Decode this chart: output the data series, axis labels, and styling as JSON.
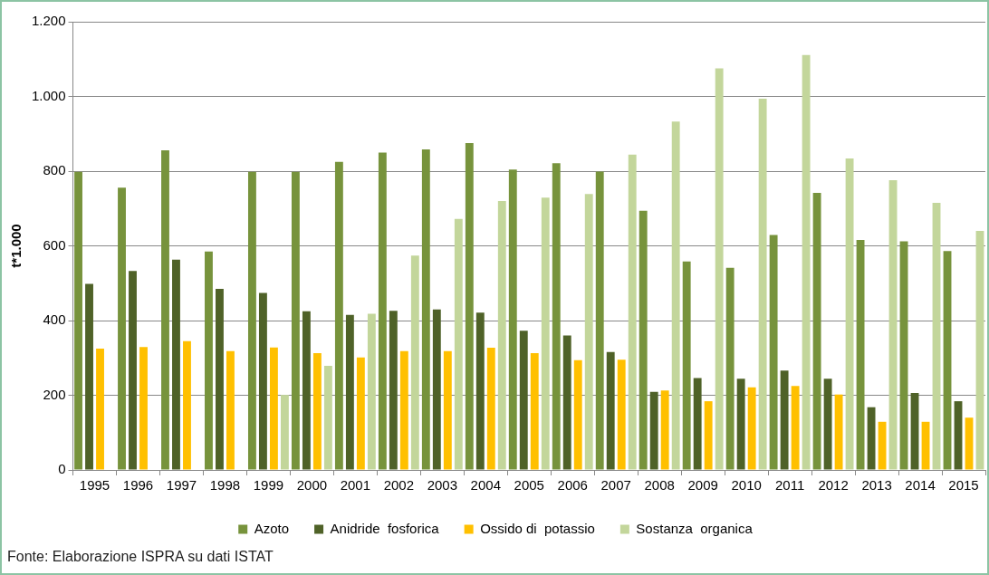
{
  "chart_data": {
    "type": "bar",
    "ylabel": "t*1.000",
    "categories": [
      "1995",
      "1996",
      "1997",
      "1998",
      "1999",
      "2000",
      "2001",
      "2002",
      "2003",
      "2004",
      "2005",
      "2006",
      "2007",
      "2008",
      "2009",
      "2010",
      "2011",
      "2012",
      "2013",
      "2014",
      "2015"
    ],
    "series": [
      {
        "name": "Azoto",
        "color": "#77933c",
        "values": [
          798,
          756,
          856,
          585,
          798,
          798,
          825,
          850,
          858,
          875,
          804,
          821,
          799,
          694,
          558,
          541,
          629,
          742,
          616,
          612,
          586
        ]
      },
      {
        "name": "Anidride  fosforica",
        "color": "#4f6228",
        "values": [
          498,
          533,
          563,
          485,
          474,
          425,
          415,
          426,
          430,
          421,
          373,
          360,
          316,
          209,
          246,
          244,
          266,
          244,
          168,
          206,
          184
        ]
      },
      {
        "name": "Ossido di  potassio",
        "color": "#ffc000",
        "values": [
          325,
          329,
          345,
          318,
          328,
          313,
          301,
          318,
          318,
          327,
          313,
          294,
          295,
          213,
          184,
          221,
          225,
          202,
          129,
          129,
          140
        ]
      },
      {
        "name": "Sostanza  organica",
        "color": "#c3d69b",
        "values": [
          null,
          null,
          null,
          null,
          201,
          279,
          418,
          574,
          672,
          720,
          729,
          739,
          844,
          933,
          1075,
          994,
          1111,
          834,
          776,
          715,
          640
        ]
      }
    ],
    "ylim": [
      0,
      1200
    ],
    "yticks": [
      0,
      {
        "value": 200,
        "label": "200"
      },
      {
        "value": 400,
        "label": "400"
      },
      {
        "value": 600,
        "label": "600"
      },
      {
        "value": 800,
        "label": "800"
      },
      {
        "value": 1000,
        "label": "1.000"
      },
      {
        "value": 1200,
        "label": "1.200"
      }
    ],
    "grid": "y",
    "legend": "bottom",
    "annotations": [
      "Fonte: Elaborazione ISPRA su dati ISTAT"
    ]
  }
}
